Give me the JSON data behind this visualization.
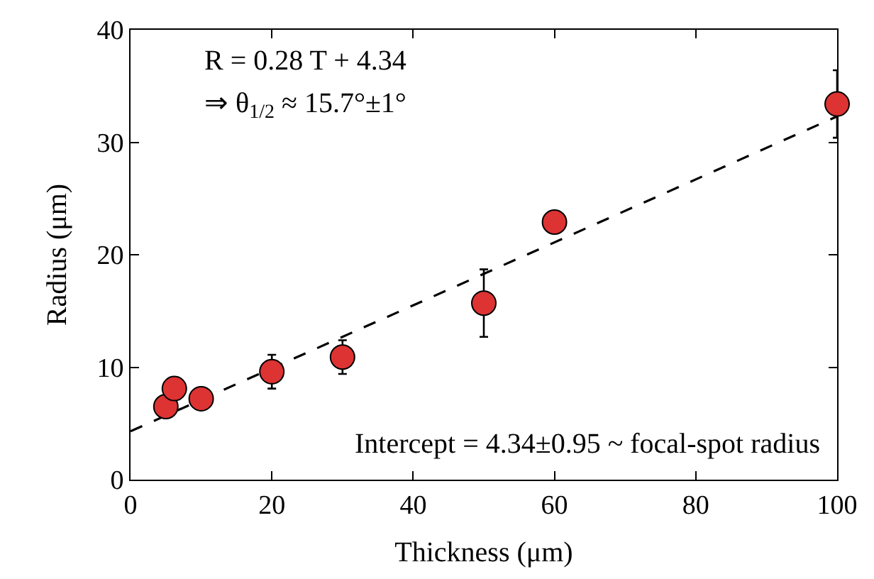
{
  "chart_data": {
    "type": "scatter",
    "xlabel": "Thickness (μm)",
    "ylabel": "Radius (μm)",
    "xlim": [
      0,
      100
    ],
    "ylim": [
      0,
      40
    ],
    "xticks": [
      0,
      20,
      40,
      60,
      80,
      100
    ],
    "yticks": [
      0,
      10,
      20,
      30,
      40
    ],
    "legend": false,
    "series": [
      {
        "color": "#dd3333",
        "marker": "circle",
        "x": [
          5,
          6.2,
          10,
          20,
          30,
          50,
          60,
          100
        ],
        "values": [
          6.5,
          8.1,
          7.2,
          9.6,
          10.9,
          15.7,
          22.9,
          33.4
        ],
        "errors": [
          null,
          null,
          null,
          1.5,
          1.5,
          3,
          null,
          3
        ]
      },
      {
        "type": "line",
        "color": "#000000",
        "line_style": "dashed",
        "x": [
          0,
          100
        ],
        "values": [
          4.3,
          32.3
        ]
      }
    ],
    "annotations": [
      "R = 0.28 T + 4.34",
      "⇒ θ$_{1/2}$ ≈ 15.7°±1°",
      "Intercept = 4.34±0.95 ~ focal-spot radius"
    ]
  }
}
